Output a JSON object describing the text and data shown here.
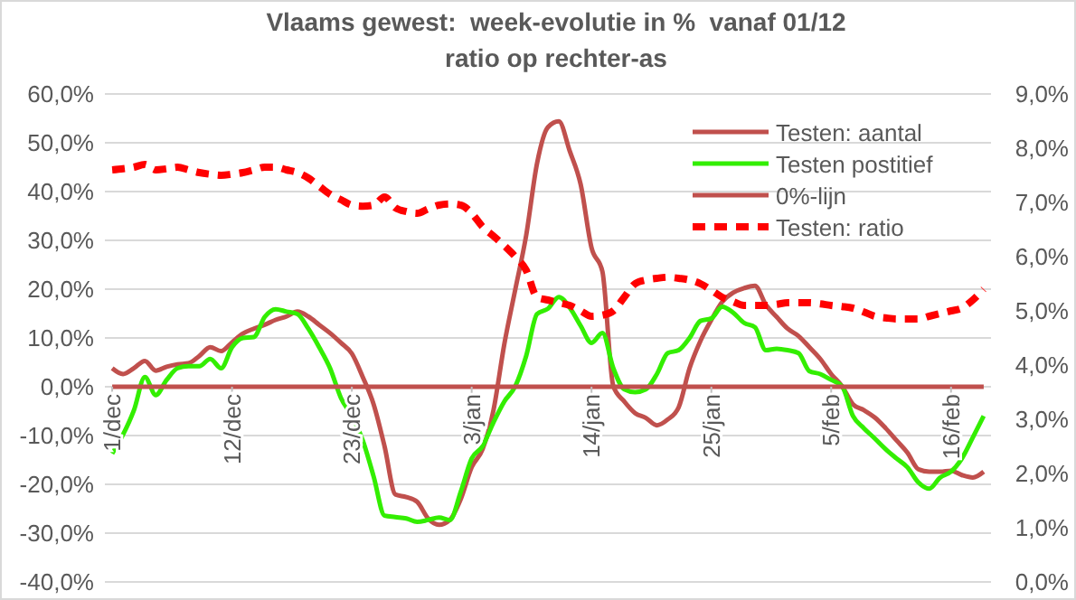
{
  "chart_data": {
    "type": "line",
    "title": "Vlaams gewest:  week-evolutie in %  vanaf 01/12",
    "subtitle": "ratio op rechter-as",
    "categories": [
      "1/dec",
      null,
      null,
      null,
      null,
      null,
      null,
      null,
      null,
      null,
      null,
      "12/dec",
      null,
      null,
      null,
      null,
      null,
      null,
      null,
      null,
      null,
      null,
      "23/dec",
      null,
      null,
      null,
      null,
      null,
      null,
      null,
      null,
      null,
      null,
      "3/jan",
      null,
      null,
      null,
      null,
      null,
      null,
      null,
      null,
      null,
      null,
      "14/jan",
      null,
      null,
      null,
      null,
      null,
      null,
      null,
      null,
      null,
      null,
      "25/jan",
      null,
      null,
      null,
      null,
      null,
      null,
      null,
      null,
      null,
      null,
      "5/feb",
      null,
      null,
      null,
      null,
      null,
      null,
      null,
      null,
      null,
      null,
      "16/feb",
      null,
      null,
      null
    ],
    "series": [
      {
        "name": "Testen: aantal",
        "color": "#c0504d",
        "line_style": "solid",
        "values": [
          3.8,
          2.6,
          3.8,
          5.3,
          3.3,
          4.1,
          4.6,
          4.8,
          6.3,
          8.1,
          7.3,
          9.1,
          10.9,
          11.9,
          12.7,
          13.7,
          14.4,
          15.4,
          14.4,
          12.7,
          11.0,
          9.0,
          6.8,
          2.0,
          -3.6,
          -12.2,
          -22.1,
          -22.6,
          -23.6,
          -27.0,
          -28.3,
          -27.3,
          -23.0,
          -16.5,
          -12.8,
          -4.8,
          8.8,
          19.9,
          31.0,
          45.8,
          53.2,
          54.4,
          48.3,
          41.5,
          28.5,
          23.6,
          0.1,
          -3.0,
          -5.4,
          -6.4,
          -7.9,
          -6.7,
          -4.2,
          3.8,
          9.4,
          13.7,
          17.4,
          19.3,
          20.2,
          20.7,
          16.8,
          14.3,
          11.9,
          10.4,
          8.1,
          5.7,
          2.6,
          0.1,
          -3.6,
          -4.8,
          -6.3,
          -8.5,
          -11.0,
          -13.5,
          -16.9,
          -17.4,
          -17.4,
          -17.2,
          -18.1,
          -18.6,
          -17.4
        ]
      },
      {
        "name": "Testen postitief",
        "color": "#33ee00",
        "line_style": "solid",
        "values": [
          -13.7,
          -9.8,
          -4.8,
          2.0,
          -1.7,
          1.4,
          3.8,
          4.2,
          4.2,
          5.7,
          3.8,
          8.1,
          10.0,
          10.2,
          14.3,
          15.9,
          15.4,
          14.9,
          11.9,
          8.1,
          3.8,
          -2.3,
          -6.0,
          -11.0,
          -18.4,
          -26.4,
          -26.7,
          -27.0,
          -27.7,
          -27.3,
          -26.8,
          -27.3,
          -21.5,
          -14.7,
          -12.2,
          -7.3,
          -3.0,
          0.1,
          6.3,
          14.9,
          16.0,
          18.4,
          16.2,
          12.5,
          9.0,
          11.0,
          3.8,
          -0.5,
          -1.1,
          -0.5,
          2.6,
          6.9,
          7.5,
          10.0,
          13.5,
          14.0,
          16.4,
          15.2,
          13.1,
          12.2,
          7.5,
          7.8,
          7.5,
          6.9,
          3.2,
          2.6,
          1.4,
          0.1,
          -6.0,
          -8.5,
          -10.6,
          -12.8,
          -14.7,
          -16.5,
          -19.6,
          -20.9,
          -18.6,
          -17.4,
          -14.7,
          -10.4,
          -6.0
        ]
      },
      {
        "name": "0%-lijn",
        "color": "#c0504d",
        "line_style": "solid",
        "values": [
          0,
          0,
          0,
          0,
          0,
          0,
          0,
          0,
          0,
          0,
          0,
          0,
          0,
          0,
          0,
          0,
          0,
          0,
          0,
          0,
          0,
          0,
          0,
          0,
          0,
          0,
          0,
          0,
          0,
          0,
          0,
          0,
          0,
          0,
          0,
          0,
          0,
          0,
          0,
          0,
          0,
          0,
          0,
          0,
          0,
          0,
          0,
          0,
          0,
          0,
          0,
          0,
          0,
          0,
          0,
          0,
          0,
          0,
          0,
          0,
          0,
          0,
          0,
          0,
          0,
          0,
          0,
          0,
          0,
          0,
          0,
          0,
          0,
          0,
          0,
          0,
          0,
          0,
          0,
          0,
          0
        ]
      },
      {
        "name": "Testen: ratio",
        "color": "#ff0000",
        "line_style": "dashed",
        "axis": "y2",
        "values": [
          7.6,
          7.62,
          7.65,
          7.7,
          7.6,
          7.62,
          7.65,
          7.6,
          7.55,
          7.52,
          7.5,
          7.52,
          7.55,
          7.6,
          7.65,
          7.65,
          7.6,
          7.55,
          7.45,
          7.3,
          7.15,
          7.05,
          6.95,
          6.93,
          6.95,
          7.1,
          6.9,
          6.83,
          6.8,
          6.88,
          6.95,
          6.97,
          6.95,
          6.8,
          6.55,
          6.38,
          6.2,
          6.0,
          5.75,
          5.25,
          5.2,
          5.15,
          5.1,
          5.0,
          4.9,
          4.92,
          5.0,
          5.25,
          5.5,
          5.57,
          5.6,
          5.62,
          5.6,
          5.57,
          5.5,
          5.38,
          5.25,
          5.17,
          5.1,
          5.1,
          5.1,
          5.12,
          5.15,
          5.15,
          5.15,
          5.13,
          5.1,
          5.08,
          5.05,
          4.98,
          4.9,
          4.87,
          4.85,
          4.85,
          4.85,
          4.9,
          4.95,
          5.0,
          5.05,
          5.2,
          5.4
        ]
      }
    ],
    "ylim": [
      -40,
      60
    ],
    "yticks": [
      {
        "value": -40,
        "label": "-40,0%"
      },
      {
        "value": -30,
        "label": "-30,0%"
      },
      {
        "value": -20,
        "label": "-20,0%"
      },
      {
        "value": -10,
        "label": "-10,0%"
      },
      {
        "value": 0,
        "label": "0,0%"
      },
      {
        "value": 10,
        "label": "10,0%"
      },
      {
        "value": 20,
        "label": "20,0%"
      },
      {
        "value": 30,
        "label": "30,0%"
      },
      {
        "value": 40,
        "label": "40,0%"
      },
      {
        "value": 50,
        "label": "50,0%"
      },
      {
        "value": 60,
        "label": "60,0%"
      }
    ],
    "y2lim": [
      0,
      9
    ],
    "y2ticks": [
      {
        "value": 0,
        "label": "0,0%"
      },
      {
        "value": 1,
        "label": "1,0%"
      },
      {
        "value": 2,
        "label": "2,0%"
      },
      {
        "value": 3,
        "label": "3,0%"
      },
      {
        "value": 4,
        "label": "4,0%"
      },
      {
        "value": 5,
        "label": "5,0%"
      },
      {
        "value": 6,
        "label": "6,0%"
      },
      {
        "value": 7,
        "label": "7,0%"
      },
      {
        "value": 8,
        "label": "8,0%"
      },
      {
        "value": 9,
        "label": "9,0%"
      }
    ],
    "grid": "y",
    "legend": "top right",
    "marker": "none"
  }
}
